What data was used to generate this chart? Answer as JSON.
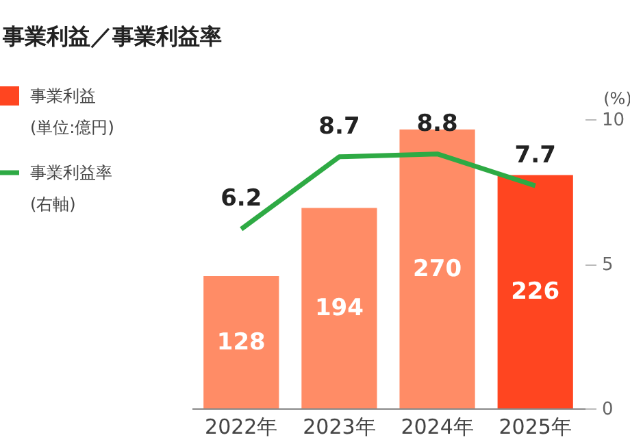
{
  "chart_data": {
    "type": "bar",
    "title": "事業利益／事業利益率",
    "categories": [
      "2022年",
      "2023年",
      "2024年",
      "2025年"
    ],
    "series": [
      {
        "name": "事業利益",
        "color": "#ff4520",
        "colors": [
          "#ff8c66",
          "#ff8c66",
          "#ff8c66",
          "#ff4520"
        ],
        "values": [
          128,
          194,
          270,
          226
        ]
      },
      {
        "name": "事業利益率",
        "type": "line",
        "axis": "y2",
        "color": "#2eaa44",
        "values": [
          6.2,
          8.7,
          8.8,
          7.7
        ]
      }
    ],
    "y2label": "(%)",
    "y2lim": [
      0,
      10
    ],
    "y2ticks": [
      0,
      5,
      10
    ],
    "annotations": [
      "(単位:億円)",
      "(右軸)"
    ],
    "data_labels": true,
    "legend": "top left",
    "grid": false,
    "marker": "none"
  }
}
